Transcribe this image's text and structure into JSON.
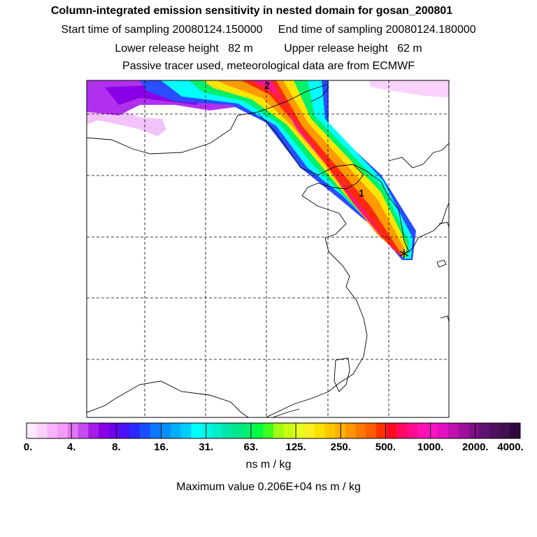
{
  "header": {
    "title": "Column-integrated emission sensitivity in nested domain for gosan_200801",
    "sampling_line": "Start time of sampling 20080124.150000     End time of sampling 20080124.180000",
    "height_line": "Lower release height   82 m          Upper release height   62 m",
    "tracer_line": "Passive tracer used, meteorological data are from ECMWF"
  },
  "map": {
    "receptor_marker": "*",
    "trajectory_labels": [
      "1",
      "2"
    ],
    "colors": {
      "lowest": "#ff00ff",
      "low": "#8000ff",
      "mid": "#00ffff",
      "green": "#00ff66",
      "yellow": "#ffee00",
      "orange": "#ff9900",
      "red": "#ff1a1a",
      "max": "#ff1493"
    }
  },
  "colorbar": {
    "tick_labels": [
      "0.",
      "4.",
      "8.",
      "16.",
      "31.",
      "63.",
      "125.",
      "250.",
      "500.",
      "1000.",
      "2000.",
      "4000."
    ],
    "colors": [
      "#fde8fe",
      "#fbd0fd",
      "#f7b3fb",
      "#f39bf9",
      "#dd77f4",
      "#c44cf0",
      "#a81cea",
      "#8a00e6",
      "#6c00f0",
      "#4a10f8",
      "#2a2aff",
      "#1a4dff",
      "#0a78ff",
      "#0090ff",
      "#00b0ff",
      "#00ccff",
      "#00ffff",
      "#00f6e6",
      "#00eec8",
      "#00e6a8",
      "#00e68a",
      "#00f070",
      "#00ff40",
      "#40ff20",
      "#a0ff10",
      "#c8ff10",
      "#e8ff20",
      "#f8f020",
      "#ffe000",
      "#ffc800",
      "#ffb000",
      "#ff9600",
      "#ff7800",
      "#ff5a00",
      "#ff3000",
      "#ff0a20",
      "#ff0a60",
      "#ff0a90",
      "#ff12b0",
      "#f812c4",
      "#e010c0",
      "#c010b0",
      "#a0109c",
      "#801088",
      "#601070",
      "#501060",
      "#401050",
      "#300840"
    ]
  },
  "unit_label": "ns m / kg",
  "max_value_line": "Maximum value  0.206E+04 ns m / kg"
}
